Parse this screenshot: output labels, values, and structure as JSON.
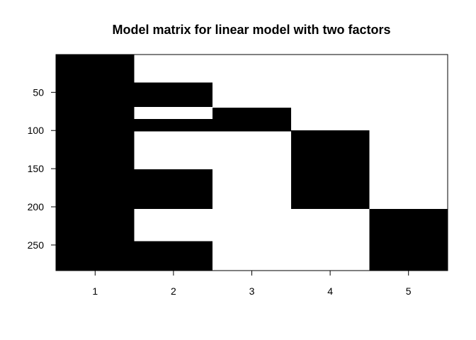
{
  "chart_data": {
    "type": "heatmap",
    "title": "Model matrix for linear model with two factors",
    "xlabel": "",
    "ylabel": "",
    "n_rows": 283,
    "x_categories": [
      "1",
      "2",
      "3",
      "4",
      "5"
    ],
    "x_ticks": [
      1,
      2,
      3,
      4,
      5
    ],
    "y_ticks": [
      50,
      100,
      150,
      200,
      250
    ],
    "y_tick_labels": [
      "50",
      "100",
      "150",
      "200",
      "250"
    ],
    "y_reversed": true,
    "colors": {
      "zero": "#ffffff",
      "one": "#000000",
      "axis": "#000000"
    },
    "filled_blocks": [
      {
        "column": 1,
        "row_start": 1,
        "row_end": 283
      },
      {
        "column": 2,
        "row_start": 37,
        "row_end": 68
      },
      {
        "column": 2,
        "row_start": 85,
        "row_end": 100
      },
      {
        "column": 3,
        "row_start": 70,
        "row_end": 100
      },
      {
        "column": 2,
        "row_start": 151,
        "row_end": 202
      },
      {
        "column": 4,
        "row_start": 100,
        "row_end": 202
      },
      {
        "column": 2,
        "row_start": 245,
        "row_end": 283
      },
      {
        "column": 5,
        "row_start": 203,
        "row_end": 283
      }
    ]
  }
}
